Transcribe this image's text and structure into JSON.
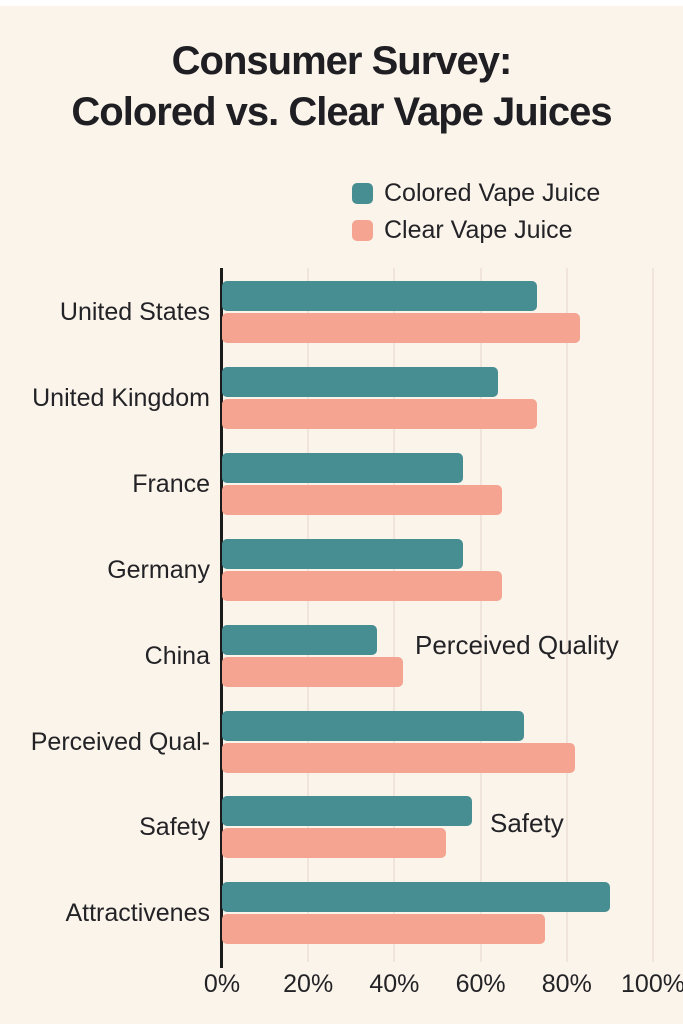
{
  "title": {
    "line1": "Consumer Survey:",
    "line2": "Colored vs. Clear Vape Juices"
  },
  "legend": [
    {
      "label": "Colored Vape Juice",
      "color": "#478E92"
    },
    {
      "label": "Clear Vape Juice",
      "color": "#F5A491"
    }
  ],
  "colors": {
    "background": "#FBF4EA",
    "teal": "#478E92",
    "salmon": "#F5A491",
    "text": "#232327",
    "axis": "#1B1B1B",
    "gridline": "#F1E4DB"
  },
  "chart_data": {
    "type": "bar",
    "orientation": "horizontal",
    "title": "Consumer Survey: Colored vs. Clear Vape Juices",
    "categories": [
      "United States",
      "United Kingdom",
      "France",
      "Germany",
      "China",
      "Perceived Qual-",
      "Safety",
      "Attractivenes"
    ],
    "series": [
      {
        "name": "Colored Vape Juice",
        "color": "#478E92",
        "values": [
          73,
          64,
          56,
          56,
          36,
          70,
          58,
          90
        ]
      },
      {
        "name": "Clear Vape Juice",
        "color": "#F5A491",
        "values": [
          83,
          73,
          65,
          65,
          42,
          82,
          52,
          75
        ]
      }
    ],
    "x_ticks": [
      "0%",
      "20%",
      "40%",
      "60%",
      "80%",
      "100%"
    ],
    "x_tick_values": [
      0,
      20,
      40,
      60,
      80,
      100
    ],
    "xlim": [
      0,
      100
    ],
    "xlabel": "",
    "ylabel": "",
    "grid": "vertical",
    "legend_position": "top-right",
    "annotations": [
      "Perceived Quality",
      "Safety"
    ]
  }
}
